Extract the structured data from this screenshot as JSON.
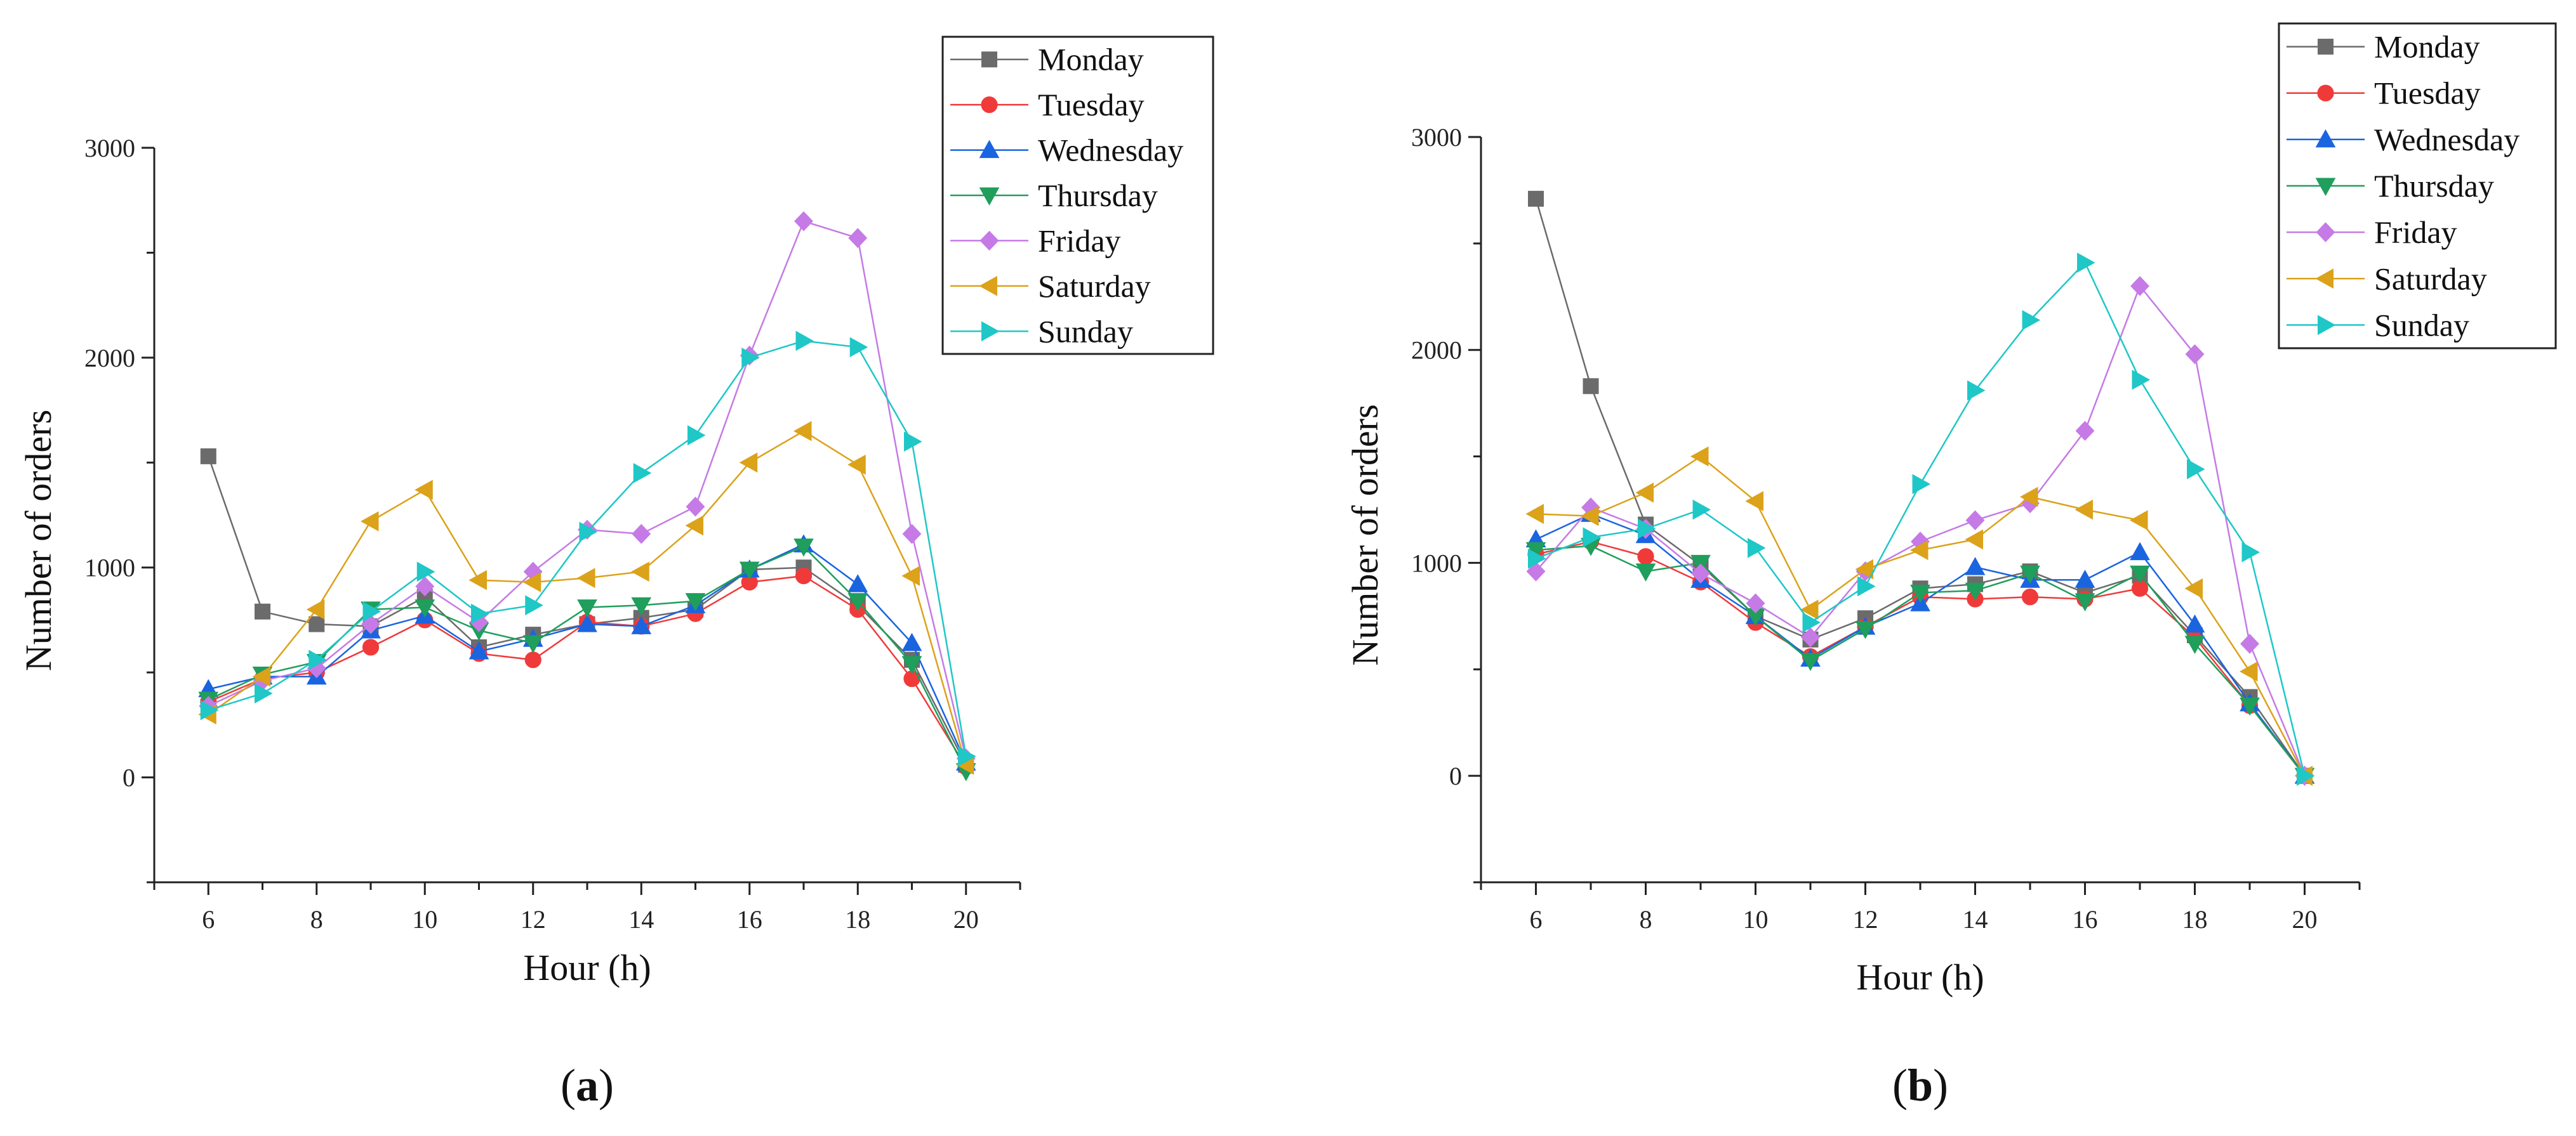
{
  "chart_data": [
    {
      "type": "line",
      "panel_label": {
        "open": "(",
        "letter": "a",
        "close": ")"
      },
      "xlabel": "Hour (h)",
      "ylabel": "Number of orders",
      "xlim": [
        5,
        21
      ],
      "ylim": [
        -500,
        3000
      ],
      "xticks": [
        6,
        8,
        10,
        12,
        14,
        16,
        18,
        20
      ],
      "yticks": [
        0,
        1000,
        2000,
        3000
      ],
      "legend_position": "top-right",
      "x": [
        6,
        7,
        8,
        9,
        10,
        11,
        12,
        13,
        14,
        15,
        16,
        17,
        18,
        19,
        20
      ],
      "series": [
        {
          "name": "Monday",
          "marker": "square",
          "color": "#6b6b6b",
          "values": [
            1530,
            790,
            730,
            720,
            860,
            620,
            680,
            730,
            760,
            800,
            990,
            1000,
            820,
            560,
            60
          ]
        },
        {
          "name": "Tuesday",
          "marker": "circle",
          "color": "#f03a3a",
          "values": [
            360,
            470,
            500,
            620,
            750,
            590,
            560,
            740,
            720,
            780,
            930,
            960,
            800,
            470,
            50
          ]
        },
        {
          "name": "Wednesday",
          "marker": "triangle-up",
          "color": "#1a64e0",
          "values": [
            420,
            480,
            480,
            700,
            770,
            600,
            660,
            730,
            720,
            820,
            990,
            1110,
            920,
            640,
            70
          ]
        },
        {
          "name": "Thursday",
          "marker": "triangle-down",
          "color": "#1f9e5c",
          "values": [
            370,
            490,
            550,
            800,
            810,
            700,
            640,
            810,
            820,
            840,
            990,
            1100,
            840,
            540,
            30
          ]
        },
        {
          "name": "Friday",
          "marker": "diamond",
          "color": "#c57ae6",
          "values": [
            340,
            460,
            520,
            730,
            910,
            740,
            980,
            1180,
            1160,
            1290,
            2010,
            2650,
            2570,
            1160,
            90
          ]
        },
        {
          "name": "Saturday",
          "marker": "triangle-left",
          "color": "#dba21a",
          "values": [
            300,
            480,
            800,
            1220,
            1370,
            940,
            930,
            950,
            980,
            1200,
            1500,
            1650,
            1490,
            960,
            60
          ]
        },
        {
          "name": "Sunday",
          "marker": "triangle-right",
          "color": "#1fc7c7",
          "values": [
            320,
            400,
            560,
            790,
            980,
            780,
            820,
            1170,
            1450,
            1630,
            2000,
            2080,
            2050,
            1600,
            100
          ]
        }
      ]
    },
    {
      "type": "line",
      "panel_label": {
        "open": "(",
        "letter": "b",
        "close": ")"
      },
      "xlabel": "Hour (h)",
      "ylabel": "Number of orders",
      "xlim": [
        5,
        21
      ],
      "ylim": [
        -500,
        3000
      ],
      "xticks": [
        6,
        8,
        10,
        12,
        14,
        16,
        18,
        20
      ],
      "yticks": [
        0,
        1000,
        2000,
        3000
      ],
      "legend_position": "top-right",
      "x": [
        6,
        7,
        8,
        9,
        10,
        11,
        12,
        13,
        14,
        15,
        16,
        17,
        18,
        19,
        20
      ],
      "series": [
        {
          "name": "Monday",
          "marker": "square",
          "color": "#6b6b6b",
          "values": [
            2710,
            1830,
            1180,
            990,
            750,
            640,
            740,
            880,
            900,
            960,
            860,
            940,
            660,
            370,
            0
          ]
        },
        {
          "name": "Tuesday",
          "marker": "circle",
          "color": "#f03a3a",
          "values": [
            1040,
            1100,
            1030,
            910,
            720,
            560,
            700,
            840,
            830,
            840,
            830,
            880,
            650,
            330,
            0
          ]
        },
        {
          "name": "Wednesday",
          "marker": "triangle-up",
          "color": "#1a64e0",
          "values": [
            1110,
            1230,
            1130,
            920,
            750,
            550,
            700,
            810,
            980,
            920,
            920,
            1050,
            710,
            340,
            0
          ]
        },
        {
          "name": "Thursday",
          "marker": "triangle-down",
          "color": "#1f9e5c",
          "values": [
            1060,
            1080,
            960,
            1000,
            750,
            540,
            690,
            860,
            870,
            950,
            820,
            950,
            620,
            330,
            0
          ]
        },
        {
          "name": "Friday",
          "marker": "diamond",
          "color": "#c57ae6",
          "values": [
            960,
            1260,
            1160,
            950,
            810,
            650,
            960,
            1100,
            1200,
            1280,
            1620,
            2300,
            1980,
            620,
            0
          ]
        },
        {
          "name": "Saturday",
          "marker": "triangle-left",
          "color": "#dba21a",
          "values": [
            1230,
            1220,
            1330,
            1500,
            1290,
            780,
            970,
            1060,
            1110,
            1310,
            1250,
            1200,
            880,
            490,
            0
          ]
        },
        {
          "name": "Sunday",
          "marker": "triangle-right",
          "color": "#1fc7c7",
          "values": [
            1020,
            1120,
            1160,
            1250,
            1070,
            720,
            890,
            1370,
            1810,
            2140,
            2410,
            1860,
            1440,
            1050,
            0
          ]
        }
      ]
    }
  ]
}
